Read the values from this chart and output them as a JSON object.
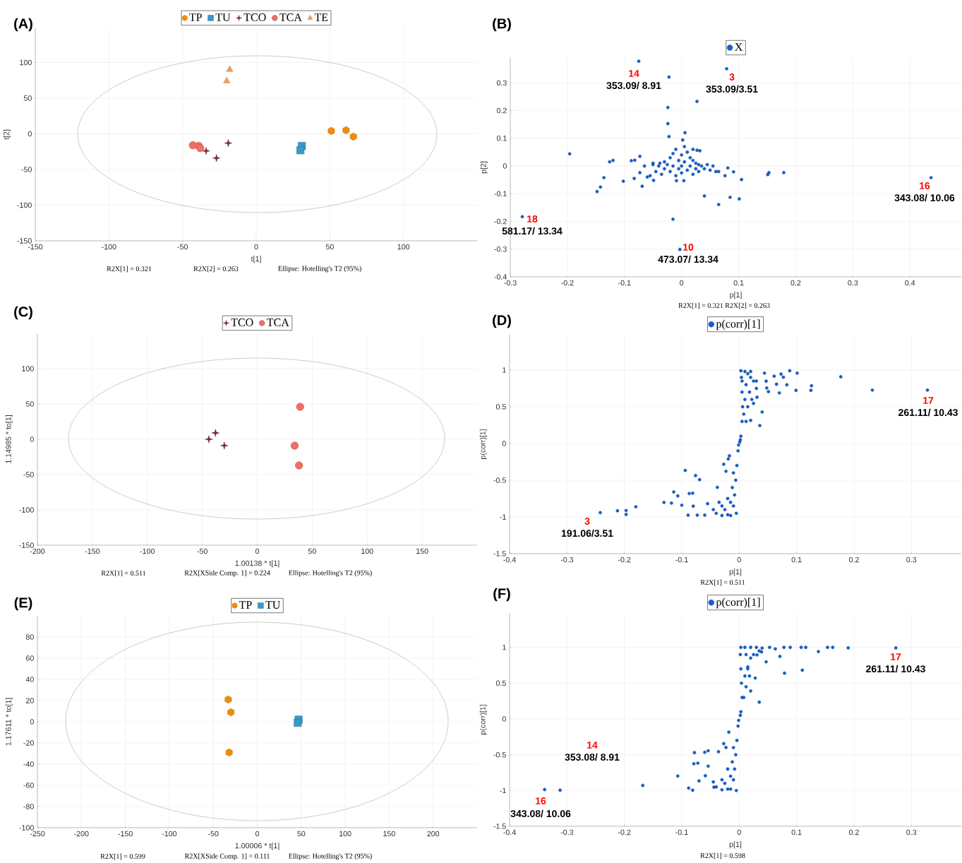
{
  "chart_data": [
    {
      "type": "scatter",
      "title": "(A)",
      "xlabel": "t[1]",
      "ylabel": "t[2]",
      "xlim": [
        -150,
        150
      ],
      "ylim": [
        -150,
        148
      ],
      "xticks": [
        -150,
        -100,
        -50,
        0,
        50,
        100
      ],
      "yticks": [
        -150,
        -100,
        -50,
        0,
        50,
        100
      ],
      "grid": true,
      "legend": "top",
      "annotations": [
        "R2X[1] = 0.321",
        "R2X[2] = 0.263",
        "Ellipse: Hotelling's T2 (95%)"
      ],
      "series": [
        {
          "name": "TP",
          "color": "#f28c00",
          "x": [
            51,
            61,
            66
          ],
          "values": [
            4,
            5,
            -4
          ]
        },
        {
          "name": "TU",
          "color": "#3a9ac8",
          "marker": "square",
          "x": [
            31,
            30
          ],
          "values": [
            -17,
            -23
          ]
        },
        {
          "name": "TCO",
          "color": "#7a2838",
          "marker": "star",
          "x": [
            -19,
            -34,
            -27
          ],
          "values": [
            -13,
            -24,
            -34
          ]
        },
        {
          "name": "TCA",
          "color": "#f26f63",
          "marker": "circle",
          "x": [
            -43,
            -39,
            -38
          ],
          "values": [
            -16,
            -17,
            -20
          ]
        },
        {
          "name": "TE",
          "color": "#f5a05a",
          "marker": "triangle",
          "x": [
            -18,
            -20
          ],
          "values": [
            90,
            74
          ]
        }
      ]
    },
    {
      "type": "scatter",
      "title": "(B)",
      "xlabel": "p[1]",
      "ylabel": "p[2]",
      "xlim": [
        -0.3,
        0.49
      ],
      "ylim": [
        -0.4,
        0.39
      ],
      "xticks": [
        -0.3,
        -0.2,
        -0.1,
        0,
        0.1,
        0.2,
        0.3,
        0.4
      ],
      "yticks": [
        -0.4,
        -0.3,
        -0.2,
        -0.1,
        0,
        0.1,
        0.2,
        0.3
      ],
      "grid": true,
      "legend": "top",
      "marker": "circle",
      "annotations": [
        "R2X[1] = 0.321 R2X[2] = 0.263",
        "14",
        "353.09/ 8.91",
        "3",
        "353.09/3.51",
        "16",
        "343.08/ 10.06",
        "18",
        "581.17/ 13.34",
        "10",
        "473.07/ 13.34"
      ],
      "series": [
        {
          "name": "X",
          "color": "#1560d0",
          "x": [
            -0.075,
            -0.022,
            0.079,
            0.027,
            -0.024,
            -0.024,
            -0.022,
            0.006,
            0.002,
            -0.196,
            -0.126,
            -0.12,
            -0.088,
            -0.082,
            -0.073,
            -0.136,
            -0.142,
            -0.148,
            -0.102,
            -0.083,
            -0.069,
            -0.073,
            0.032,
            0.04,
            0.065,
            0.085,
            0.101,
            0.105,
            0.091,
            0.081,
            0.076,
            0.151,
            0.153,
            0.179,
            0.437,
            -0.279,
            -0.015,
            -0.003,
            -0.049,
            -0.009,
            0.004,
            -0.05,
            -0.045,
            -0.04,
            -0.035,
            -0.03,
            -0.03,
            -0.025,
            -0.02,
            -0.02,
            -0.015,
            -0.015,
            -0.01,
            -0.01,
            -0.005,
            -0.005,
            0,
            0,
            0,
            0.005,
            0.005,
            0.01,
            0.01,
            0.015,
            0.015,
            0.02,
            0.02,
            0.025,
            0.025,
            0.03,
            0.03,
            0.035,
            0.04,
            0.045,
            0.05,
            0.055,
            0.06,
            0.065,
            -0.055,
            -0.06,
            -0.065,
            0.02,
            0.027,
            -0.038,
            -0.05
          ],
          "values": [
            0.378,
            0.321,
            0.351,
            0.233,
            0.211,
            0.153,
            0.106,
            0.12,
            0.094,
            0.044,
            0.015,
            0.02,
            0.019,
            0.021,
            0.035,
            -0.042,
            -0.076,
            -0.092,
            -0.055,
            -0.045,
            -0.073,
            -0.024,
            0.055,
            -0.108,
            -0.139,
            -0.113,
            -0.119,
            -0.049,
            -0.021,
            -0.007,
            -0.035,
            -0.031,
            -0.024,
            -0.024,
            -0.042,
            -0.183,
            -0.192,
            -0.301,
            -0.052,
            -0.053,
            -0.053,
            0.01,
            -0.02,
            0,
            -0.03,
            0.015,
            -0.01,
            0.005,
            0.03,
            -0.02,
            0.045,
            0,
            0.06,
            -0.035,
            0.02,
            -0.01,
            0.04,
            0,
            -0.025,
            0.07,
            0.015,
            0.05,
            -0.015,
            0.03,
            0,
            -0.03,
            0.02,
            0.01,
            -0.01,
            0.005,
            -0.02,
            0,
            -0.01,
            0.005,
            -0.015,
            0,
            -0.02,
            -0.02,
            -0.035,
            -0.04,
            0,
            0.06,
            0.057,
            0.01,
            0.005
          ]
        }
      ]
    },
    {
      "type": "scatter",
      "title": "(C)",
      "xlabel": "1.00138 * t[1]",
      "ylabel": "1.14985 * to[1]",
      "xlim": [
        -200,
        200
      ],
      "ylim": [
        -150,
        150
      ],
      "xticks": [
        -200,
        -150,
        -100,
        -50,
        0,
        50,
        100,
        150
      ],
      "yticks": [
        -150,
        -100,
        -50,
        0,
        50,
        100
      ],
      "grid": true,
      "legend": "top",
      "annotations": [
        "R2X[1] = 0.511",
        "R2X[XSide Comp. 1] = 0.224",
        "Ellipse: Hotelling's T2 (95%)"
      ],
      "series": [
        {
          "name": "TCO",
          "color": "#7a2838",
          "marker": "star",
          "x": [
            -38,
            -44,
            -30
          ],
          "values": [
            9,
            0,
            -9
          ]
        },
        {
          "name": "TCA",
          "color": "#f26f63",
          "marker": "circle",
          "x": [
            39,
            34,
            38
          ],
          "values": [
            46,
            -9,
            -37
          ]
        }
      ]
    },
    {
      "type": "scatter",
      "title": "(D)",
      "xlabel": "p[1]",
      "ylabel": "p(corr)[1]",
      "xlim": [
        -0.4,
        0.387
      ],
      "ylim": [
        -1.5,
        1.48
      ],
      "xticks": [
        -0.4,
        -0.3,
        -0.2,
        -0.1,
        0,
        0.1,
        0.2,
        0.3
      ],
      "yticks": [
        -1.5,
        -1,
        -0.5,
        0,
        0.5,
        1
      ],
      "grid": true,
      "legend": "top",
      "marker": "circle",
      "annotations": [
        "R2X[1] = 0.511",
        "3",
        "191.06/3.51",
        "17",
        "261.11/ 10.43"
      ],
      "series": [
        {
          "name": "p(corr)[1]",
          "color": "#1560d0",
          "x": [
            0.328,
            0.232,
            0.177,
            0.088,
            0.101,
            0.073,
            0.061,
            0.077,
            0.126,
            0.125,
            0.099,
            0.07,
            0.065,
            0.051,
            0.083,
            0.048,
            0.04,
            0.036,
            0.02,
            0.025,
            0.031,
            0.044,
            0.047,
            -0.242,
            -0.212,
            -0.197,
            -0.197,
            -0.18,
            -0.131,
            -0.118,
            -0.114,
            -0.107,
            -0.1,
            -0.094,
            -0.087,
            -0.081,
            -0.076,
            -0.069,
            -0.08,
            -0.089,
            -0.073,
            -0.06,
            -0.055,
            -0.038,
            -0.027,
            -0.023,
            -0.017,
            -0.019,
            0.003,
            0.005,
            0.006,
            0.005,
            0.004,
            0.003,
            0.01,
            0.015,
            0.02,
            0.025,
            0.012,
            0.018,
            0.01,
            0.015,
            0.008,
            0.012,
            0.002,
            0.02,
            0.03,
            0.03,
            0.022,
            0.005,
            -0.002,
            -0.004,
            -0.006,
            -0.008,
            -0.01,
            -0.005,
            -0.02,
            -0.03,
            -0.04,
            -0.045,
            -0.025,
            -0.015,
            -0.02,
            -0.012,
            -0.03,
            -0.035,
            -0.01,
            -0.015,
            -0.001,
            0.001
          ],
          "values": [
            0.727,
            0.727,
            0.908,
            0.99,
            0.958,
            0.945,
            0.916,
            0.903,
            0.786,
            0.723,
            0.723,
            0.689,
            0.807,
            0.706,
            0.798,
            0.756,
            0.429,
            0.244,
            0.315,
            0.546,
            0.63,
            0.958,
            0.849,
            -0.941,
            -0.916,
            -0.966,
            -0.912,
            -0.861,
            -0.803,
            -0.811,
            -0.66,
            -0.714,
            -0.84,
            -0.366,
            -0.681,
            -0.676,
            -0.437,
            -0.492,
            -0.853,
            -0.975,
            -0.975,
            -0.975,
            -0.819,
            -0.597,
            -0.282,
            -0.378,
            -0.168,
            -0.21,
            0.1,
            0.3,
            0.5,
            0.7,
            0.9,
            0.99,
            0.98,
            0.95,
            0.9,
            0.85,
            0.8,
            0.7,
            0.6,
            0.5,
            0.4,
            0.3,
            0.05,
            0.98,
            0.85,
            0.75,
            0.6,
            0.85,
            -0.1,
            -0.3,
            -0.5,
            -0.7,
            -0.85,
            -0.95,
            -0.97,
            -0.98,
            -0.95,
            -0.9,
            -0.9,
            -0.8,
            -0.75,
            -0.6,
            -0.85,
            -0.8,
            -0.4,
            -0.98,
            -0.02,
            0.02
          ]
        }
      ]
    },
    {
      "type": "scatter",
      "title": "(E)",
      "xlabel": "1.00006 * t[1]",
      "ylabel": "1.17611 * to[1]",
      "xlim": [
        -250,
        250
      ],
      "ylim": [
        -100,
        100
      ],
      "xticks": [
        -250,
        -200,
        -150,
        -100,
        -50,
        0,
        50,
        100,
        150,
        200
      ],
      "yticks": [
        -100,
        -80,
        -60,
        -40,
        -20,
        0,
        20,
        40,
        60,
        80
      ],
      "grid": true,
      "legend": "top",
      "annotations": [
        "R2X[1] = 0.599",
        "R2X[XSide Comp. 1] = 0.111",
        "Ellipse: Hotelling's T2 (95%)"
      ],
      "series": [
        {
          "name": "TP",
          "color": "#f28c00",
          "x": [
            -33,
            -30,
            -32
          ],
          "values": [
            21,
            9,
            -29
          ]
        },
        {
          "name": "TU",
          "color": "#3a9ac8",
          "marker": "square",
          "x": [
            47,
            46
          ],
          "values": [
            2,
            -1
          ]
        }
      ]
    },
    {
      "type": "scatter",
      "title": "(F)",
      "xlabel": "p[1]",
      "ylabel": "p(corr)[1]",
      "xlim": [
        -0.4,
        0.387
      ],
      "ylim": [
        -1.5,
        1.48
      ],
      "xticks": [
        -0.4,
        -0.3,
        -0.2,
        -0.1,
        0,
        0.1,
        0.2,
        0.3
      ],
      "yticks": [
        -1.5,
        -1,
        -0.5,
        0,
        0.5,
        1
      ],
      "grid": true,
      "legend": "top",
      "marker": "circle",
      "annotations": [
        "R2X[1] = 0.598",
        "17",
        "261.11/ 10.43",
        "14",
        "353.08/ 8.91",
        "16",
        "343.08/ 10.06"
      ],
      "series": [
        {
          "name": "p(corr)[1]",
          "color": "#1560d0",
          "x": [
            0.273,
            0.19,
            0.163,
            0.154,
            0.138,
            0.116,
            0.108,
            0.11,
            0.089,
            0.078,
            0.063,
            0.079,
            0.071,
            0.053,
            0.047,
            0.039,
            0.035,
            0.028,
            0.02,
            0.015,
            0.031,
            -0.339,
            -0.312,
            -0.168,
            -0.107,
            -0.088,
            -0.081,
            -0.078,
            -0.079,
            -0.072,
            -0.07,
            -0.06,
            -0.054,
            -0.054,
            -0.036,
            -0.018,
            -0.027,
            -0.023,
            -0.059,
            -0.044,
            0.003,
            0.005,
            0.004,
            0.003,
            0.002,
            0.003,
            0.01,
            0.02,
            0.03,
            0.04,
            0.012,
            0.02,
            0.015,
            0.01,
            0.012,
            0.008,
            0.025,
            0.035,
            0.018,
            0.002,
            -0.002,
            -0.004,
            -0.006,
            -0.008,
            -0.01,
            -0.005,
            -0.02,
            -0.03,
            -0.04,
            -0.045,
            -0.025,
            -0.015,
            -0.02,
            -0.012,
            -0.03,
            -0.01,
            -0.015,
            -0.001
          ],
          "values": [
            0.992,
            0.992,
            1,
            1,
            0.941,
            1,
            1,
            0.681,
            1,
            1,
            0.979,
            0.639,
            0.874,
            1,
            0.798,
            0.937,
            0.235,
            0.571,
            0.391,
            0.727,
            0.895,
            -0.987,
            -0.996,
            -0.929,
            -0.798,
            -0.966,
            -0.996,
            -0.471,
            -0.626,
            -0.618,
            -0.866,
            -0.466,
            -0.445,
            -0.66,
            -0.458,
            -0.185,
            -0.345,
            -0.399,
            -0.794,
            -0.954,
            0.1,
            0.3,
            0.5,
            0.7,
            0.9,
            1,
            1,
            1,
            1,
            0.99,
            0.9,
            0.85,
            0.7,
            0.6,
            0.45,
            0.3,
            0.9,
            0.95,
            0.6,
            0.05,
            -0.1,
            -0.3,
            -0.5,
            -0.7,
            -0.85,
            -1,
            -0.98,
            -0.99,
            -0.95,
            -0.88,
            -0.9,
            -0.8,
            -0.7,
            -0.6,
            -0.85,
            -0.4,
            -0.98,
            -0.02
          ]
        }
      ]
    }
  ]
}
